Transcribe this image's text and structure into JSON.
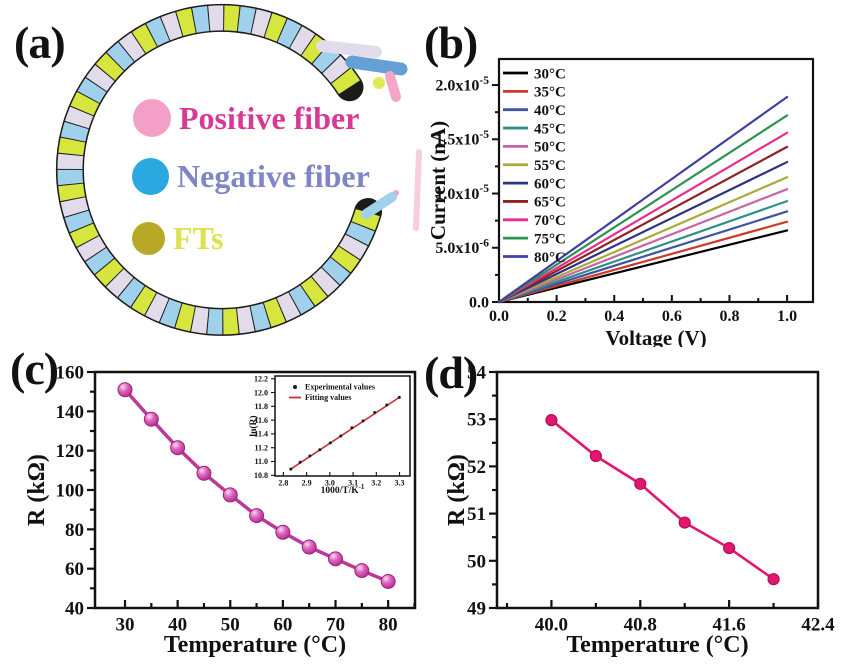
{
  "panel_a": {
    "label": "(a)",
    "legend": [
      {
        "name": "Positive fiber",
        "dot_color": "#f49fc6",
        "text_color": "#d63a94"
      },
      {
        "name": "Negative fiber",
        "dot_color": "#2aa9e0",
        "text_color": "#7f85c5"
      },
      {
        "name": "FTs",
        "dot_color": "#b7a826",
        "text_color": "#dce24b"
      }
    ],
    "ring_colors": {
      "yellow": "#d7e63f",
      "blue": "#9fd0ec",
      "lavender": "#e2dbe9",
      "shadow": "#1b1b1b",
      "tip_blue": "#64a0d6",
      "tip_pink": "#f4a6c8",
      "tip_yellow": "#e2ea52"
    }
  },
  "chart_data": [
    {
      "id": "b",
      "panel_label": "(b)",
      "type": "line",
      "xlabel": "Voltage (V)",
      "ylabel": "Current (nA)",
      "xlim": [
        0,
        1.09
      ],
      "ylim": [
        0,
        2.24e-05
      ],
      "grid": false,
      "legend_position": "top-left",
      "xticks": {
        "values": [
          0,
          0.2,
          0.4,
          0.6,
          0.8,
          1.0
        ],
        "labels": [
          "0.0",
          "0.2",
          "0.4",
          "0.6",
          "0.8",
          "1.0"
        ],
        "minor": [
          0.1,
          0.3,
          0.5,
          0.7,
          0.9
        ]
      },
      "yticks": {
        "values": [
          0,
          5e-06,
          1e-05,
          1.5e-05,
          2e-05
        ],
        "labels": [
          "0.0",
          "5.0x10^{-6}",
          "1.0x10^{-5}",
          "1.5x10^{-5}",
          "2.0x10^{-5}"
        ],
        "minor": [
          2.5e-06,
          7.5e-06,
          1.25e-05,
          1.75e-05
        ]
      },
      "series": [
        {
          "name": "30°C",
          "color": "#000000",
          "x": [
            0,
            1.0
          ],
          "y": [
            0,
            6.6e-06
          ]
        },
        {
          "name": "35°C",
          "color": "#cc3b2a",
          "x": [
            0,
            1.0
          ],
          "y": [
            0,
            7.4e-06
          ]
        },
        {
          "name": "40°C",
          "color": "#40549f",
          "x": [
            0,
            1.0
          ],
          "y": [
            0,
            8.35e-06
          ]
        },
        {
          "name": "45°C",
          "color": "#2c9087",
          "x": [
            0,
            1.0
          ],
          "y": [
            0,
            9.3e-06
          ]
        },
        {
          "name": "50°C",
          "color": "#c565a5",
          "x": [
            0,
            1.0
          ],
          "y": [
            0,
            1.04e-05
          ]
        },
        {
          "name": "55°C",
          "color": "#aaa93b",
          "x": [
            0,
            1.0
          ],
          "y": [
            0,
            1.15e-05
          ]
        },
        {
          "name": "60°C",
          "color": "#2c3380",
          "x": [
            0,
            1.0
          ],
          "y": [
            0,
            1.29e-05
          ]
        },
        {
          "name": "65°C",
          "color": "#8c2423",
          "x": [
            0,
            1.0
          ],
          "y": [
            0,
            1.43e-05
          ]
        },
        {
          "name": "70°C",
          "color": "#ea2b8d",
          "x": [
            0,
            1.0
          ],
          "y": [
            0,
            1.56e-05
          ]
        },
        {
          "name": "75°C",
          "color": "#2f9153",
          "x": [
            0,
            1.0
          ],
          "y": [
            0,
            1.72e-05
          ]
        },
        {
          "name": "80°C",
          "color": "#4040a0",
          "x": [
            0,
            1.0
          ],
          "y": [
            0,
            1.89e-05
          ]
        }
      ]
    },
    {
      "id": "c",
      "panel_label": "(c)",
      "type": "line",
      "xlabel": "Temperature (°C)",
      "ylabel": "R (kΩ)",
      "xlim": [
        24.3,
        85.1
      ],
      "ylim": [
        40,
        160
      ],
      "grid": false,
      "xticks": {
        "values": [
          30,
          40,
          50,
          60,
          70,
          80
        ],
        "labels": [
          "30",
          "40",
          "50",
          "60",
          "70",
          "80"
        ],
        "minor": [
          35,
          45,
          55,
          65,
          75,
          85
        ]
      },
      "yticks": {
        "values": [
          40,
          60,
          80,
          100,
          120,
          140,
          160
        ],
        "labels": [
          "40",
          "60",
          "80",
          "100",
          "120",
          "140",
          "160"
        ],
        "minor": [
          50,
          70,
          90,
          110,
          130,
          150
        ]
      },
      "series": [
        {
          "name": "R",
          "color": "#b93a98",
          "x": [
            30,
            35,
            40,
            45,
            50,
            55,
            60,
            65,
            70,
            75,
            80
          ],
          "y": [
            151,
            136,
            121.5,
            108.5,
            97.5,
            87,
            78.5,
            71,
            65,
            59,
            53.5
          ],
          "marker": {
            "r": 7,
            "style": "ball"
          }
        }
      ]
    },
    {
      "id": "c_inset",
      "type": "scatter",
      "xlabel": "1000/T/K^{-1}",
      "ylabel": "ln(R)",
      "xlim": [
        2.764,
        3.345
      ],
      "ylim": [
        10.79,
        12.24
      ],
      "grid": false,
      "legend_position": "top-left",
      "xticks": {
        "values": [
          2.8,
          2.9,
          3.0,
          3.1,
          3.2,
          3.3
        ],
        "labels": [
          "2.8",
          "2.9",
          "3.0",
          "3.1",
          "3.2",
          "3.3"
        ],
        "minor": []
      },
      "yticks": {
        "values": [
          10.8,
          11.0,
          11.2,
          11.4,
          11.6,
          11.8,
          12.0,
          12.2
        ],
        "labels": [
          "10.8",
          "11.0",
          "11.2",
          "11.4",
          "11.6",
          "11.8",
          "12.0",
          "12.2"
        ],
        "minor": []
      },
      "legend": [
        {
          "name": "Experimental values",
          "swatch": "dot",
          "color": "#1a1a1a"
        },
        {
          "name": "Fitting values",
          "swatch": "line",
          "color": "#cc2f2f"
        }
      ],
      "series": [
        {
          "name": "Fitting values",
          "color": "#cc2f2f",
          "x": [
            2.832,
            3.299
          ],
          "y": [
            10.89,
            11.93
          ]
        },
        {
          "name": "Experimental values",
          "color": "#1a1a1a",
          "scatter": true,
          "x": [
            2.832,
            2.872,
            2.914,
            2.957,
            3.002,
            3.047,
            3.095,
            3.143,
            3.193,
            3.245,
            3.299
          ],
          "y": [
            10.89,
            10.99,
            11.08,
            11.17,
            11.27,
            11.37,
            11.49,
            11.59,
            11.71,
            11.82,
            11.93
          ],
          "marker": {
            "r": 1.5,
            "style": "flat"
          }
        }
      ]
    },
    {
      "id": "d",
      "panel_label": "(d)",
      "type": "line",
      "xlabel": "Temperature (°C)",
      "ylabel": "R (kΩ)",
      "xlim": [
        39.51,
        42.4
      ],
      "ylim": [
        49,
        54
      ],
      "grid": false,
      "xticks": {
        "values": [
          40.0,
          40.8,
          41.6,
          42.4
        ],
        "labels": [
          "40.0",
          "40.8",
          "41.6",
          "42.4"
        ],
        "minor": [
          39.6,
          40.4,
          41.2,
          42.0
        ]
      },
      "yticks": {
        "values": [
          49,
          50,
          51,
          52,
          53,
          54
        ],
        "labels": [
          "49",
          "50",
          "51",
          "52",
          "53",
          "54"
        ],
        "minor": [
          49.5,
          50.5,
          51.5,
          52.5,
          53.5
        ]
      },
      "series": [
        {
          "name": "R",
          "color": "#e4156f",
          "x": [
            40.0,
            40.4,
            40.8,
            41.2,
            41.6,
            42.0
          ],
          "y": [
            52.98,
            52.22,
            51.63,
            50.81,
            50.27,
            49.61
          ],
          "marker": {
            "r": 5.5,
            "style": "flat",
            "edge": "#b30f58"
          }
        }
      ]
    }
  ]
}
